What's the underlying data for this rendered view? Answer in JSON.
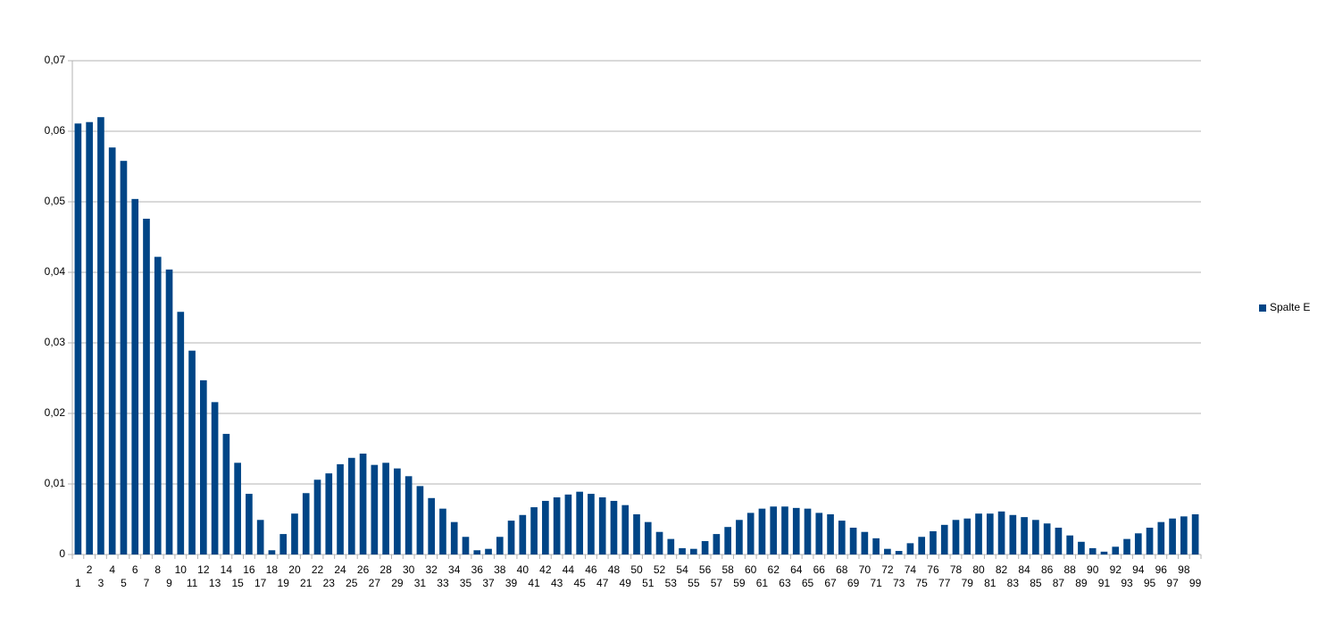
{
  "chart_data": {
    "type": "bar",
    "categories": [
      "1",
      "2",
      "3",
      "4",
      "5",
      "6",
      "7",
      "8",
      "9",
      "10",
      "11",
      "12",
      "13",
      "14",
      "15",
      "16",
      "17",
      "18",
      "19",
      "20",
      "21",
      "22",
      "23",
      "24",
      "25",
      "26",
      "27",
      "28",
      "29",
      "30",
      "31",
      "32",
      "33",
      "34",
      "35",
      "36",
      "37",
      "38",
      "39",
      "40",
      "41",
      "42",
      "43",
      "44",
      "45",
      "46",
      "47",
      "48",
      "49",
      "50",
      "51",
      "52",
      "53",
      "54",
      "55",
      "56",
      "57",
      "58",
      "59",
      "60",
      "61",
      "62",
      "63",
      "64",
      "65",
      "66",
      "67",
      "68",
      "69",
      "70",
      "71",
      "72",
      "73",
      "74",
      "75",
      "76",
      "77",
      "78",
      "79",
      "80",
      "81",
      "82",
      "83",
      "84",
      "85",
      "86",
      "87",
      "88",
      "89",
      "90",
      "91",
      "92",
      "93",
      "94",
      "95",
      "96",
      "97",
      "98",
      "99"
    ],
    "series": [
      {
        "name": "Spalte E",
        "color": "#004586",
        "values": [
          0.0611,
          0.0613,
          0.062,
          0.0577,
          0.0558,
          0.0504,
          0.0476,
          0.0422,
          0.0404,
          0.0344,
          0.0289,
          0.0247,
          0.0216,
          0.0171,
          0.013,
          0.0086,
          0.0049,
          0.0006,
          0.0029,
          0.0058,
          0.0087,
          0.0106,
          0.0115,
          0.0128,
          0.0137,
          0.0143,
          0.0127,
          0.013,
          0.0122,
          0.0111,
          0.0097,
          0.008,
          0.0065,
          0.0046,
          0.0025,
          0.0006,
          0.0008,
          0.0025,
          0.0048,
          0.0056,
          0.0067,
          0.0076,
          0.0081,
          0.0085,
          0.0089,
          0.0086,
          0.0081,
          0.0076,
          0.007,
          0.0057,
          0.0046,
          0.0032,
          0.0022,
          0.0009,
          0.0008,
          0.0019,
          0.0029,
          0.0039,
          0.0049,
          0.0059,
          0.0065,
          0.0068,
          0.0068,
          0.0066,
          0.0065,
          0.0059,
          0.0057,
          0.0048,
          0.0038,
          0.0032,
          0.0023,
          0.0008,
          0.0005,
          0.0016,
          0.0025,
          0.0033,
          0.0042,
          0.0049,
          0.0051,
          0.0058,
          0.0058,
          0.0061,
          0.0056,
          0.0053,
          0.0049,
          0.0044,
          0.0038,
          0.0027,
          0.0018,
          0.0009,
          0.0004,
          0.0011,
          0.0022,
          0.003,
          0.0038,
          0.0046,
          0.0051,
          0.0054,
          0.0057
        ]
      }
    ],
    "ylim": [
      0,
      0.07
    ],
    "yticks": [
      0,
      {
        "value": 0.01,
        "label": "0,01"
      },
      {
        "value": 0.02,
        "label": "0,02"
      },
      {
        "value": 0.03,
        "label": "0,03"
      },
      {
        "value": 0.04,
        "label": "0,04"
      },
      {
        "value": 0.05,
        "label": "0,05"
      },
      {
        "value": 0.06,
        "label": "0,06"
      },
      {
        "value": 0.07,
        "label": "0,07"
      }
    ],
    "grid": true,
    "legend": "right"
  }
}
